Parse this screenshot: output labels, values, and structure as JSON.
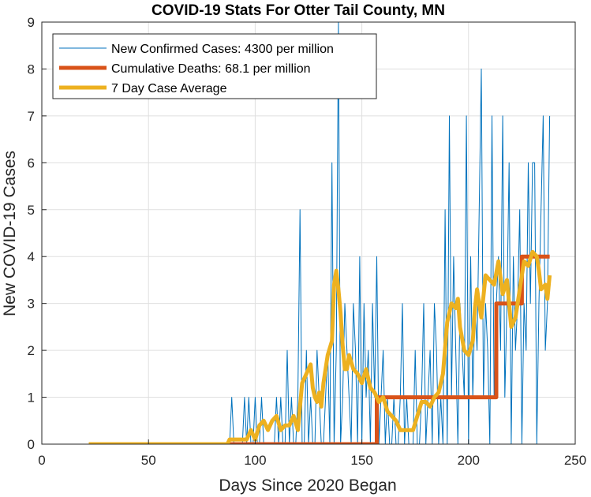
{
  "chart_data": {
    "type": "line",
    "title": "COVID-19 Stats For Otter Tail County, MN",
    "xlabel": "Days Since 2020 Began",
    "ylabel": "New COVID-19 Cases",
    "xlim": [
      0,
      250
    ],
    "ylim": [
      0,
      9
    ],
    "xticks": [
      0,
      50,
      100,
      150,
      200,
      250
    ],
    "yticks": [
      0,
      1,
      2,
      3,
      4,
      5,
      6,
      7,
      8,
      9
    ],
    "grid": true,
    "legend_position": "top-left",
    "series": [
      {
        "name": "New Confirmed Cases: 4300 per million",
        "color": "#0072BD",
        "x": [
          88,
          89,
          90,
          91,
          92,
          93,
          94,
          95,
          96,
          97,
          98,
          99,
          100,
          101,
          102,
          103,
          104,
          105,
          106,
          107,
          108,
          109,
          110,
          111,
          112,
          113,
          114,
          115,
          116,
          117,
          118,
          119,
          120,
          121,
          122,
          123,
          124,
          125,
          126,
          127,
          128,
          129,
          130,
          131,
          132,
          133,
          134,
          135,
          136,
          137,
          138,
          139,
          140,
          141,
          142,
          143,
          144,
          145,
          146,
          147,
          148,
          149,
          150,
          151,
          152,
          153,
          154,
          155,
          156,
          157,
          158,
          159,
          160,
          161,
          162,
          163,
          164,
          165,
          166,
          167,
          168,
          169,
          170,
          171,
          172,
          173,
          174,
          175,
          176,
          177,
          178,
          179,
          180,
          181,
          182,
          183,
          184,
          185,
          186,
          187,
          188,
          189,
          190,
          191,
          192,
          193,
          194,
          195,
          196,
          197,
          198,
          199,
          200,
          201,
          202,
          203,
          204,
          205,
          206,
          207,
          208,
          209,
          210,
          211,
          212,
          213,
          214,
          215,
          216,
          217,
          218,
          219,
          220,
          221,
          222,
          223,
          224,
          225,
          226,
          227,
          228,
          229,
          230,
          231,
          232,
          233,
          234,
          235,
          236,
          237,
          238
        ],
        "y": [
          0,
          1,
          0,
          0,
          0,
          0,
          0,
          1,
          0,
          1,
          0,
          0,
          1,
          0,
          0,
          1,
          0,
          0,
          0,
          0,
          0,
          0,
          1,
          0,
          1,
          0,
          0,
          2,
          0,
          1,
          0,
          0,
          1,
          5,
          0,
          0,
          2,
          0,
          1,
          0,
          0,
          2,
          1,
          0,
          0,
          1,
          2,
          0,
          6,
          0,
          2,
          9,
          0,
          1,
          3,
          2,
          1,
          0,
          3,
          2,
          0,
          4,
          0,
          3,
          1,
          2,
          0,
          3,
          1,
          4,
          0,
          1,
          2,
          0,
          1,
          0,
          0,
          1,
          0,
          0,
          1,
          3,
          0,
          1,
          0,
          0,
          0,
          2,
          0,
          0,
          1,
          3,
          0,
          1,
          2,
          0,
          3,
          2,
          0,
          1,
          0,
          5,
          0,
          7,
          1,
          4,
          2,
          0,
          3,
          2,
          1,
          7,
          0,
          4,
          1,
          3,
          2,
          5,
          8,
          1,
          3,
          2,
          0,
          7,
          1,
          3,
          4,
          2,
          7,
          1,
          3,
          6,
          0,
          4,
          2,
          3,
          5,
          0,
          3,
          2,
          6,
          3,
          6,
          6,
          0,
          3,
          5,
          7,
          2,
          3,
          7
        ]
      },
      {
        "name": "Cumulative Deaths: 68.1 per million",
        "color": "#D95319",
        "x": [
          88,
          157,
          157,
          213,
          213,
          225,
          225,
          238
        ],
        "y": [
          0,
          0,
          1,
          1,
          3,
          3,
          4,
          4
        ]
      },
      {
        "name": "7 Day Case Average",
        "color": "#EDB120",
        "x": [
          22,
          60,
          87,
          88,
          89,
          90,
          92,
          94,
          95,
          96,
          97,
          98,
          100,
          102,
          104,
          106,
          108,
          110,
          112,
          114,
          116,
          118,
          120,
          122,
          124,
          126,
          127,
          128,
          129,
          130,
          131,
          132,
          134,
          136,
          137,
          138,
          139,
          140,
          141,
          142,
          143,
          144,
          146,
          148,
          150,
          152,
          154,
          156,
          158,
          160,
          162,
          164,
          166,
          168,
          170,
          172,
          174,
          176,
          178,
          180,
          182,
          184,
          186,
          188,
          190,
          192,
          194,
          195,
          196,
          198,
          200,
          202,
          203,
          204,
          206,
          208,
          210,
          212,
          214,
          216,
          218,
          220,
          222,
          224,
          226,
          228,
          230,
          232,
          233,
          234,
          236,
          237,
          238
        ],
        "y": [
          0,
          0,
          0,
          0.1,
          0.1,
          0.1,
          0.1,
          0.1,
          0.1,
          0.1,
          0.2,
          0.3,
          0.1,
          0.4,
          0.5,
          0.3,
          0.5,
          0.6,
          0.3,
          0.4,
          0.4,
          0.6,
          0.3,
          1.3,
          1.5,
          1.7,
          1.2,
          1.0,
          0.9,
          1.1,
          0.8,
          1.3,
          1.9,
          2.2,
          3.4,
          3.7,
          3.3,
          2.8,
          2.1,
          1.6,
          1.6,
          1.9,
          1.6,
          1.5,
          1.3,
          1.6,
          1.2,
          1.1,
          0.9,
          1.0,
          0.7,
          0.6,
          0.5,
          0.3,
          0.3,
          0.3,
          0.3,
          0.6,
          0.9,
          0.9,
          0.8,
          1.0,
          1.1,
          1.5,
          2.6,
          3.0,
          2.9,
          3.1,
          2.5,
          2.0,
          1.9,
          2.2,
          2.9,
          3.3,
          2.7,
          3.6,
          3.5,
          3.4,
          3.9,
          3.2,
          3.5,
          2.5,
          2.7,
          3.3,
          3.9,
          3.8,
          4.1,
          4.0,
          3.7,
          3.3,
          3.4,
          3.1,
          3.6
        ]
      }
    ]
  }
}
